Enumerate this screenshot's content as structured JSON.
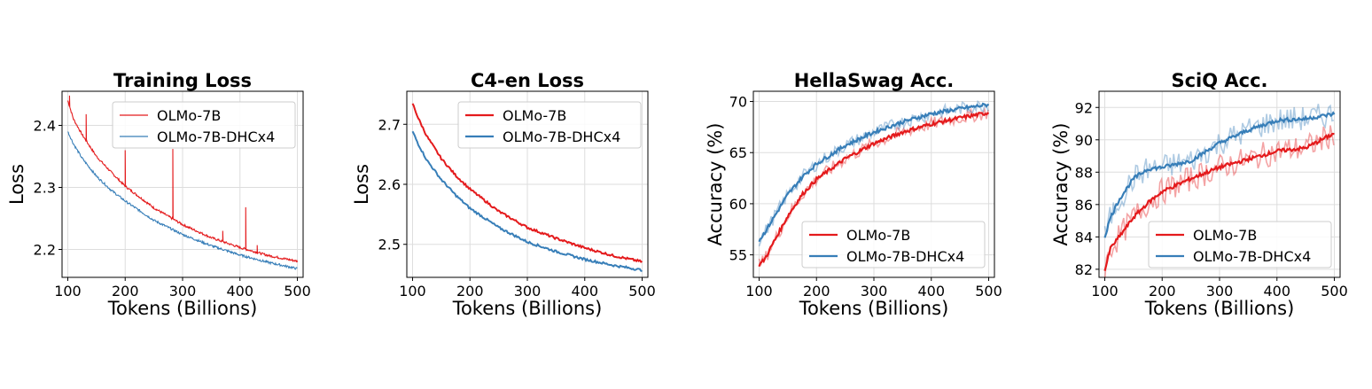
{
  "figure": {
    "colors": {
      "OLMo-7B": "#e41a1c",
      "OLMo-7B-DHCx4": "#377eb8"
    }
  },
  "chart_data": [
    {
      "type": "line",
      "title": "Training Loss",
      "xlabel": "Tokens (Billions)",
      "ylabel": "Loss",
      "xlim": [
        90,
        510
      ],
      "ylim": [
        2.155,
        2.455
      ],
      "xticks": [
        100,
        200,
        300,
        400,
        500
      ],
      "yticks": [
        2.2,
        2.3,
        2.4
      ],
      "ytick_labels": [
        "2.2",
        "2.3",
        "2.4"
      ],
      "grid": true,
      "legend": "top-right",
      "series": [
        {
          "name": "OLMo-7B",
          "color": "#e41a1c",
          "style": "thin-noisy",
          "x": [
            100,
            110,
            125,
            150,
            175,
            200,
            250,
            300,
            350,
            400,
            450,
            500
          ],
          "y": [
            2.44,
            2.41,
            2.385,
            2.35,
            2.325,
            2.302,
            2.267,
            2.24,
            2.219,
            2.203,
            2.19,
            2.181
          ],
          "spikes": [
            [
              103,
              2.448
            ],
            [
              132,
              2.418
            ],
            [
              200,
              2.36
            ],
            [
              283,
              2.362
            ],
            [
              370,
              2.23
            ],
            [
              410,
              2.268
            ],
            [
              430,
              2.207
            ]
          ]
        },
        {
          "name": "OLMo-7B-DHCx4",
          "color": "#377eb8",
          "style": "thin-noisy",
          "x": [
            100,
            110,
            125,
            150,
            175,
            200,
            250,
            300,
            350,
            400,
            450,
            500
          ],
          "y": [
            2.39,
            2.37,
            2.347,
            2.318,
            2.296,
            2.278,
            2.247,
            2.224,
            2.206,
            2.191,
            2.179,
            2.169
          ]
        }
      ]
    },
    {
      "type": "line",
      "title": "C4-en Loss",
      "xlabel": "Tokens (Billions)",
      "ylabel": "Loss",
      "xlim": [
        90,
        510
      ],
      "ylim": [
        2.445,
        2.755
      ],
      "xticks": [
        100,
        200,
        300,
        400,
        500
      ],
      "yticks": [
        2.5,
        2.6,
        2.7
      ],
      "ytick_labels": [
        "2.5",
        "2.6",
        "2.7"
      ],
      "grid": true,
      "legend": "top-right",
      "series": [
        {
          "name": "OLMo-7B",
          "color": "#e41a1c",
          "style": "solid",
          "x": [
            100,
            110,
            125,
            150,
            175,
            200,
            250,
            300,
            350,
            400,
            450,
            500
          ],
          "y": [
            2.735,
            2.71,
            2.68,
            2.643,
            2.615,
            2.592,
            2.555,
            2.528,
            2.51,
            2.494,
            2.481,
            2.471
          ]
        },
        {
          "name": "OLMo-7B-DHCx4",
          "color": "#377eb8",
          "style": "solid",
          "x": [
            100,
            110,
            125,
            150,
            175,
            200,
            250,
            300,
            350,
            400,
            450,
            500
          ],
          "y": [
            2.688,
            2.667,
            2.64,
            2.608,
            2.582,
            2.56,
            2.528,
            2.504,
            2.488,
            2.475,
            2.465,
            2.457
          ]
        }
      ]
    },
    {
      "type": "line",
      "title": "HellaSwag Acc.",
      "xlabel": "Tokens (Billions)",
      "ylabel": "Accuracy (%)",
      "xlim": [
        90,
        510
      ],
      "ylim": [
        52.8,
        71.0
      ],
      "xticks": [
        100,
        200,
        300,
        400,
        500
      ],
      "yticks": [
        55,
        60,
        65,
        70
      ],
      "ytick_labels": [
        "55",
        "60",
        "65",
        "70"
      ],
      "grid": true,
      "legend": "lower-right",
      "series": [
        {
          "name": "OLMo-7B",
          "color": "#e41a1c",
          "style": "smoothed",
          "x": [
            100,
            110,
            125,
            150,
            175,
            200,
            250,
            300,
            350,
            400,
            450,
            500
          ],
          "y": [
            54.0,
            54.6,
            56.2,
            58.8,
            60.9,
            62.4,
            64.4,
            65.9,
            67.0,
            67.8,
            68.4,
            68.9
          ]
        },
        {
          "name": "OLMo-7B-DHCx4",
          "color": "#377eb8",
          "style": "smoothed",
          "x": [
            100,
            110,
            125,
            150,
            175,
            200,
            250,
            300,
            350,
            400,
            450,
            500
          ],
          "y": [
            56.4,
            57.2,
            58.6,
            60.9,
            62.6,
            63.9,
            65.7,
            67.0,
            68.0,
            68.8,
            69.3,
            69.7
          ]
        }
      ]
    },
    {
      "type": "line",
      "title": "SciQ Acc.",
      "xlabel": "Tokens (Billions)",
      "ylabel": "Accuracy (%)",
      "xlim": [
        90,
        510
      ],
      "ylim": [
        81.5,
        93.0
      ],
      "xticks": [
        100,
        200,
        300,
        400,
        500
      ],
      "yticks": [
        82,
        84,
        86,
        88,
        90,
        92
      ],
      "ytick_labels": [
        "82",
        "84",
        "86",
        "88",
        "90",
        "92"
      ],
      "grid": true,
      "legend": "lower-right",
      "series": [
        {
          "name": "OLMo-7B",
          "color": "#e41a1c",
          "style": "smoothed",
          "x": [
            100,
            110,
            125,
            150,
            175,
            200,
            250,
            300,
            350,
            400,
            450,
            500
          ],
          "y": [
            81.9,
            83.3,
            84.0,
            85.2,
            86.1,
            86.8,
            87.6,
            88.3,
            88.8,
            89.3,
            89.5,
            90.4
          ]
        },
        {
          "name": "OLMo-7B-DHCx4",
          "color": "#377eb8",
          "style": "smoothed",
          "x": [
            100,
            110,
            125,
            150,
            175,
            200,
            250,
            300,
            350,
            400,
            450,
            500
          ],
          "y": [
            84.0,
            85.2,
            86.3,
            87.6,
            88.2,
            88.3,
            88.7,
            89.8,
            90.6,
            91.2,
            91.3,
            91.6
          ]
        }
      ]
    }
  ]
}
